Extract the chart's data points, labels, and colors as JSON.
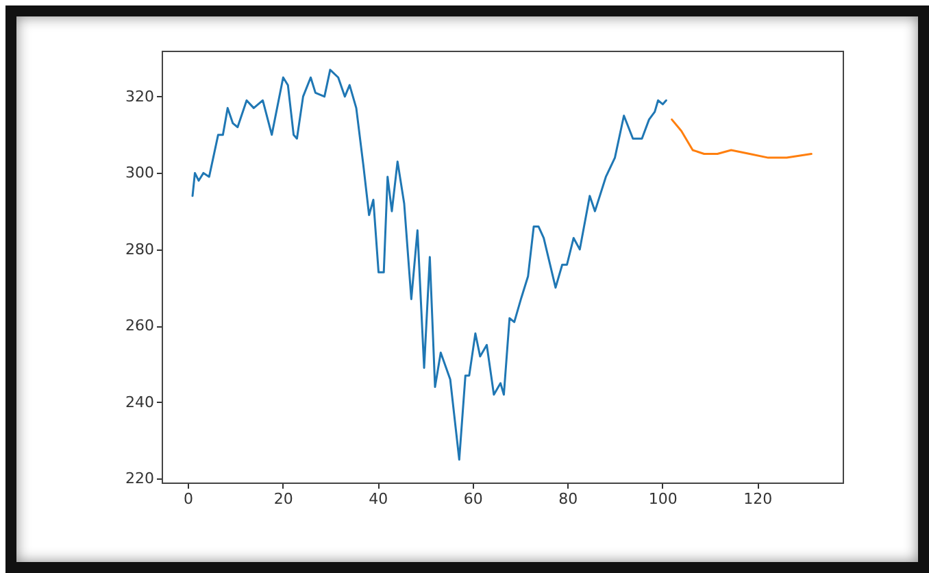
{
  "chart_data": {
    "type": "line",
    "xlim": [
      -5.5,
      138
    ],
    "xticks": [
      0,
      20,
      40,
      60,
      80,
      100,
      120
    ],
    "ylim": [
      219,
      332
    ],
    "yticks": [
      220,
      240,
      260,
      280,
      300,
      320
    ],
    "grid": false,
    "line_style": "solid",
    "series": [
      {
        "color": "#1f77b4",
        "x": [
          1,
          1.5,
          2.3,
          3.3,
          4.5,
          6.4,
          7.4,
          8.4,
          9.5,
          10.5,
          12.4,
          13.9,
          15.8,
          17.7,
          20.1,
          21.1,
          22.3,
          23,
          24.3,
          25.9,
          26.9,
          28.8,
          30,
          31.7,
          33.1,
          34.1,
          35.5,
          37,
          38.2,
          39.1,
          40.2,
          41.3,
          42.1,
          43,
          44.2,
          45.6,
          47.1,
          48.4,
          49.8,
          51,
          52.1,
          53.3,
          55.3,
          57.2,
          58.5,
          59.3,
          60.6,
          61.6,
          63,
          64.5,
          65.9,
          66.6,
          67.8,
          68.8,
          70.2,
          71.7,
          72.9,
          73.9,
          75,
          77.5,
          78.9,
          79.9,
          81.3,
          82.6,
          84.7,
          85.8,
          88.1,
          90,
          91.9,
          93.8,
          95.7,
          97.2,
          98.4,
          99.1,
          100.1,
          100.8
        ],
        "values": [
          294,
          300,
          298,
          300,
          299,
          310,
          310,
          317,
          313,
          312,
          319,
          317,
          319,
          310,
          325,
          323,
          310,
          309,
          320,
          325,
          321,
          320,
          327,
          325,
          320,
          323,
          317,
          302,
          289,
          293,
          274,
          274,
          299,
          290,
          303,
          292,
          267,
          285,
          249,
          278,
          244,
          253,
          246,
          225,
          247,
          247,
          258,
          252,
          255,
          242,
          245,
          242,
          262,
          261,
          267,
          273,
          286,
          286,
          283,
          270,
          276,
          276,
          283,
          280,
          294,
          290,
          299,
          304,
          315,
          309,
          309,
          314,
          316,
          319,
          318,
          319
        ]
      },
      {
        "color": "#ff7f0e",
        "x": [
          102,
          104,
          106.4,
          108.8,
          111.6,
          114.5,
          118.4,
          122.3,
          126.2,
          131.4
        ],
        "values": [
          314,
          311,
          306,
          305,
          305,
          306,
          305,
          304,
          304,
          305
        ]
      }
    ]
  }
}
